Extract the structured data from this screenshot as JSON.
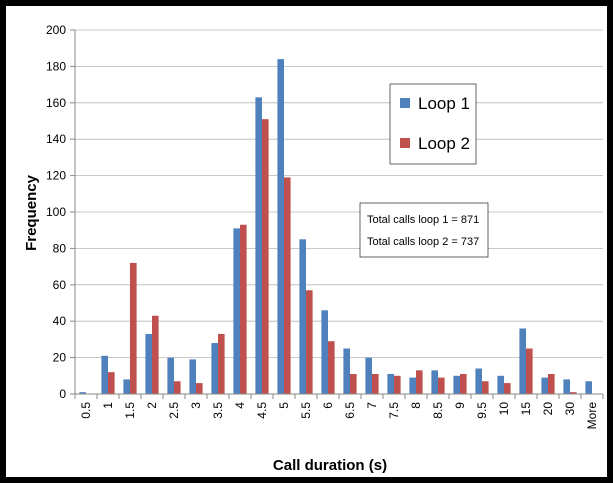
{
  "chart_data": {
    "type": "bar",
    "xlabel": "Call duration (s)",
    "ylabel": "Frequency",
    "ylim": [
      0,
      200
    ],
    "yticks": [
      0,
      20,
      40,
      60,
      80,
      100,
      120,
      140,
      160,
      180,
      200
    ],
    "grid": true,
    "legend_position": "upper-right",
    "categories": [
      "0.5",
      "1",
      "1.5",
      "2",
      "2.5",
      "3",
      "3.5",
      "4",
      "4.5",
      "5",
      "5.5",
      "6",
      "6.5",
      "7",
      "7.5",
      "8",
      "8.5",
      "9",
      "9.5",
      "10",
      "15",
      "20",
      "30",
      "More"
    ],
    "series": [
      {
        "name": "Loop 1",
        "color": "#4f81bd",
        "values": [
          1,
          21,
          8,
          33,
          20,
          19,
          28,
          91,
          163,
          184,
          85,
          46,
          25,
          20,
          11,
          9,
          13,
          10,
          14,
          10,
          36,
          9,
          8,
          7
        ]
      },
      {
        "name": "Loop 2",
        "color": "#c0504d",
        "values": [
          0,
          12,
          72,
          43,
          7,
          6,
          33,
          93,
          151,
          119,
          57,
          29,
          11,
          11,
          10,
          13,
          9,
          11,
          7,
          6,
          25,
          11,
          1,
          0
        ]
      }
    ],
    "annotations": [
      "Total calls loop 1 = 871",
      "Total calls loop 2 = 737"
    ]
  }
}
